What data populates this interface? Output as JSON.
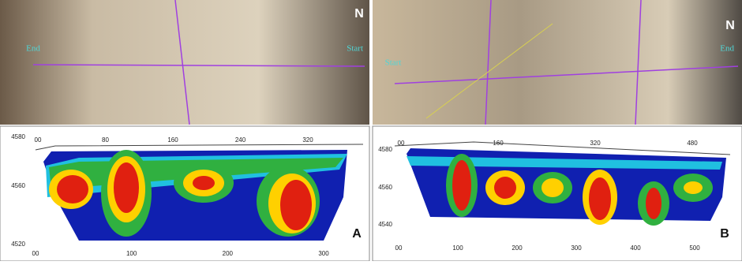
{
  "panels": [
    {
      "map": {
        "north": "N",
        "left_label": "End",
        "right_label": "Start"
      },
      "section": {
        "top_ticks": [
          "00",
          "80",
          "160",
          "240",
          "320"
        ],
        "left_ticks": [
          "4580",
          "4560",
          "4520"
        ],
        "bottom_ticks": [
          "00",
          "100",
          "200",
          "300"
        ],
        "label": "A"
      }
    },
    {
      "map": {
        "north": "N",
        "left_label": "Start",
        "right_label": "End"
      },
      "section": {
        "top_ticks": [
          "00",
          "160",
          "320",
          "480"
        ],
        "left_ticks": [
          "4580",
          "4560",
          "4540"
        ],
        "bottom_ticks": [
          "00",
          "100",
          "200",
          "300",
          "400",
          "500"
        ],
        "label": "B"
      }
    }
  ]
}
